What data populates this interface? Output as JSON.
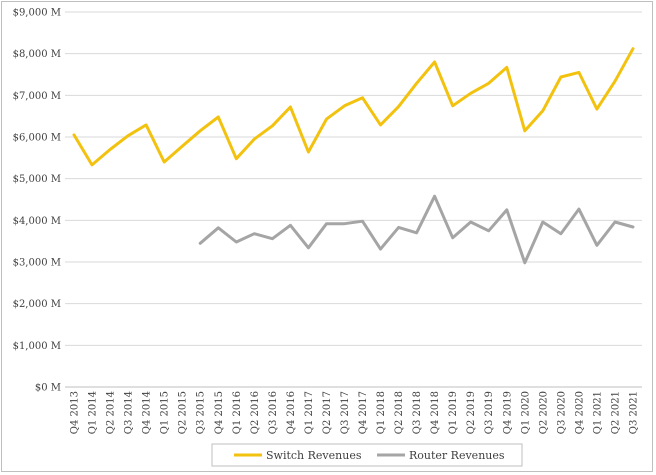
{
  "chart_data": {
    "type": "line",
    "title": "",
    "xlabel": "",
    "ylabel": "",
    "ylim": [
      0,
      9000
    ],
    "yticks": [
      0,
      1000,
      2000,
      3000,
      4000,
      5000,
      6000,
      7000,
      8000,
      9000
    ],
    "ytick_labels": [
      "$0 M",
      "$1,000 M",
      "$2,000 M",
      "$3,000 M",
      "$4,000 M",
      "$5,000 M",
      "$6,000 M",
      "$7,000 M",
      "$8,000 M",
      "$9,000 M"
    ],
    "grid": true,
    "legend_position": "bottom",
    "categories": [
      "Q4 2013",
      "Q1 2014",
      "Q2 2014",
      "Q3 2014",
      "Q4 2014",
      "Q1 2015",
      "Q2 2015",
      "Q3 2015",
      "Q4 2015",
      "Q1 2016",
      "Q2 2016",
      "Q3 2016",
      "Q4 2016",
      "Q1 2017",
      "Q2 2017",
      "Q3 2017",
      "Q4 2017",
      "Q1 2018",
      "Q2 2018",
      "Q3 2018",
      "Q4 2018",
      "Q1 2019",
      "Q2 2019",
      "Q3 2019",
      "Q4 2019",
      "Q1 2020",
      "Q2 2020",
      "Q3 2020",
      "Q4 2020",
      "Q1 2021",
      "Q2 2021",
      "Q3 2021"
    ],
    "series": [
      {
        "name": "Switch Revenues",
        "color": "#f2c20f",
        "values": [
          6050,
          5330,
          5700,
          6030,
          6290,
          5400,
          5780,
          6150,
          6480,
          5480,
          5950,
          6270,
          6720,
          5640,
          6430,
          6750,
          6940,
          6290,
          6730,
          7290,
          7800,
          6750,
          7050,
          7290,
          7670,
          6150,
          6630,
          7440,
          7550,
          6670,
          7340,
          8120
        ]
      },
      {
        "name": "Router Revenues",
        "color": "#a5a5a5",
        "values": [
          null,
          null,
          null,
          null,
          null,
          null,
          null,
          3450,
          3820,
          3480,
          3680,
          3560,
          3880,
          3340,
          3920,
          3920,
          3980,
          3310,
          3830,
          3700,
          4580,
          3580,
          3960,
          3750,
          4250,
          2980,
          3960,
          3680,
          4270,
          3400,
          3960,
          3840
        ]
      }
    ]
  }
}
